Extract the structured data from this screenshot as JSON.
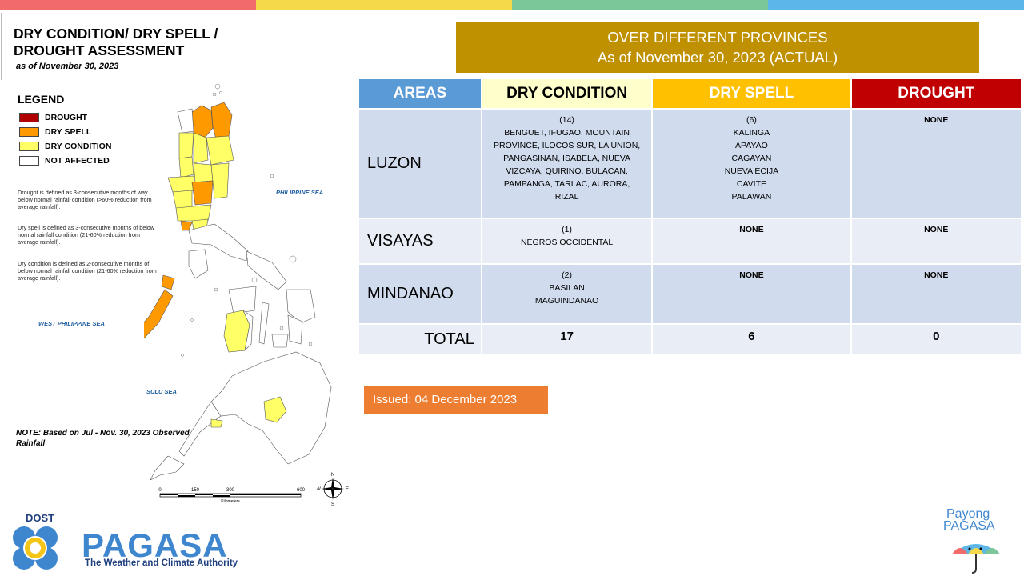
{
  "top_bar_colors": [
    "#f26b6b",
    "#f5d94b",
    "#7cc79a",
    "#5cb6e8"
  ],
  "map_panel": {
    "title": "DRY CONDITION/ DRY SPELL / DROUGHT ASSESSMENT",
    "date": "as of November 30, 2023",
    "legend_title": "LEGEND",
    "legend": [
      {
        "label": "DROUGHT",
        "color": "#b00000"
      },
      {
        "label": "DRY SPELL",
        "color": "#ff9900"
      },
      {
        "label": "DRY CONDITION",
        "color": "#ffff66"
      },
      {
        "label": "NOT AFFECTED",
        "color": "#ffffff"
      }
    ],
    "definitions": [
      "Drought is defined as 3-consecutive months of way below normal rainfall condition (>60% reduction from average rainfall).",
      "Dry spell is defined as 3-consecutive months of below normal rainfall condition (21-60% reduction from average rainfall).",
      "Dry condition is defined as 2-consecutive months of below normal rainfall condition (21-60% reduction from average rainfall)."
    ],
    "sea_labels": {
      "philippine_sea": "PHILIPPINE SEA",
      "west_philippine_sea": "WEST PHILIPPINE SEA",
      "sulu_sea": "SULU SEA"
    },
    "note": "NOTE: Based on Jul - Nov. 30, 2023 Observed Rainfall",
    "scale": {
      "ticks": [
        "0",
        "150",
        "300",
        "600"
      ],
      "unit": "Kilometers"
    },
    "compass": {
      "n": "N",
      "s": "S",
      "e": "E",
      "w": "W"
    }
  },
  "header": {
    "line1": "OVER DIFFERENT PROVINCES",
    "line2": "As of November 30, 2023 (ACTUAL)",
    "color": "#bf9000"
  },
  "table": {
    "columns": [
      {
        "label": "AREAS",
        "bg": "#5b9bd5",
        "fg": "#ffffff"
      },
      {
        "label": "DRY CONDITION",
        "bg": "#ffffcc",
        "fg": "#000000"
      },
      {
        "label": "DRY SPELL",
        "bg": "#ffc000",
        "fg": "#ffffff"
      },
      {
        "label": "DROUGHT",
        "bg": "#c00000",
        "fg": "#ffffff"
      }
    ],
    "rows": [
      {
        "area": "LUZON",
        "dry_condition_count": "(14)",
        "dry_condition": [
          "BENGUET,  IFUGAO, MOUNTAIN",
          "PROVINCE, ILOCOS SUR, LA UNION,",
          "PANGASINAN,  ISABELA,  NUEVA",
          "VIZCAYA,  QUIRINO, BULACAN,",
          "PAMPANGA,  TARLAC,  AURORA,",
          "RIZAL"
        ],
        "dry_spell_count": "(6)",
        "dry_spell": [
          "KALINGA",
          "APAYAO",
          "CAGAYAN",
          "NUEVA  ECIJA",
          "CAVITE",
          "PALAWAN"
        ],
        "drought": "NONE"
      },
      {
        "area": "VISAYAS",
        "dry_condition_count": "(1)",
        "dry_condition": [
          "NEGROS  OCCIDENTAL"
        ],
        "dry_spell_count": "",
        "dry_spell": [
          "NONE"
        ],
        "drought": "NONE"
      },
      {
        "area": "MINDANAO",
        "dry_condition_count": "(2)",
        "dry_condition": [
          "BASILAN",
          "MAGUINDANAO"
        ],
        "dry_spell_count": "",
        "dry_spell": [
          "NONE"
        ],
        "drought": "NONE"
      }
    ],
    "total": {
      "label": "TOTAL",
      "dry_condition": "17",
      "dry_spell": "6",
      "drought": "0"
    },
    "row_bg_a": "#d0dbed",
    "row_bg_b": "#e9edf6"
  },
  "issued": "Issued: 04 December 2023",
  "footer": {
    "dost": "DOST",
    "pagasa": "PAGASA",
    "tagline": "The Weather and Climate Authority",
    "payong_line1": "Payong",
    "payong_line2": "PAGASA"
  }
}
